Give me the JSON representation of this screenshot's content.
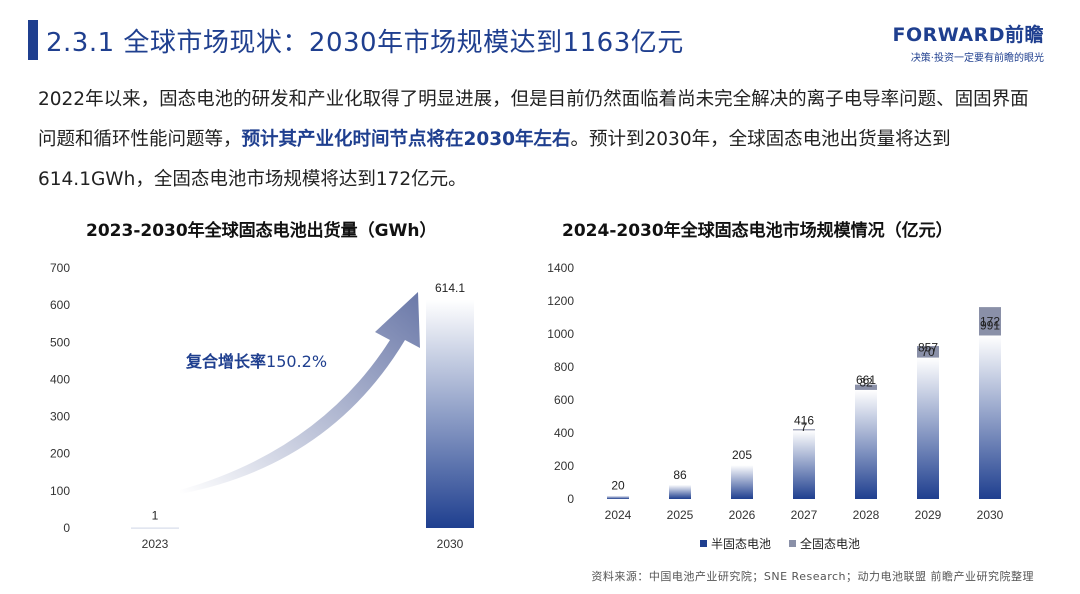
{
  "title": "2.3.1 全球市场现状：2030年市场规模达到1163亿元",
  "logo": {
    "main": "FORWARD前瞻",
    "sub": "决策·投资一定要有前瞻的眼光"
  },
  "paragraph": {
    "part1": "2022年以来，固态电池的研发和产业化取得了明显进展，但是目前仍然面临着尚未完全解决的离子电导率问题、固固界面问题和循环性能问题等，",
    "highlight": "预计其产业化时间节点将在2030年左右",
    "part2": "。预计到2030年，全球固态电池出货量将达到614.1GWh，全固态电池市场规模将达到172亿元。"
  },
  "cagr": {
    "label": "复合增长率",
    "value": "150.2%"
  },
  "chart_data": [
    {
      "type": "bar",
      "title": "2023-2030年全球固态电池出货量（GWh）",
      "categories": [
        "2023",
        "2030"
      ],
      "values": [
        1,
        614.1
      ],
      "value_labels": [
        "1",
        "614.1"
      ],
      "ylim": [
        0,
        700
      ],
      "yticks": [
        "0",
        "100",
        "200",
        "300",
        "400",
        "500",
        "600",
        "700"
      ],
      "grid": false,
      "color": "#1f3f8f"
    },
    {
      "type": "bar",
      "stacked": true,
      "title": "2024-2030年全球固态电池市场规模情况（亿元）",
      "categories": [
        "2024",
        "2025",
        "2026",
        "2027",
        "2028",
        "2029",
        "2030"
      ],
      "series": [
        {
          "name": "半固态电池",
          "values": [
            20,
            86,
            205,
            416,
            661,
            857,
            991
          ],
          "color": "#1f3f8f"
        },
        {
          "name": "全固态电池",
          "values": [
            0,
            0,
            0,
            7,
            32,
            70,
            172
          ],
          "color": "#8a90a8"
        }
      ],
      "labels_semi": [
        "20",
        "86",
        "205",
        "416",
        "661",
        "857",
        "991"
      ],
      "labels_full": [
        "",
        "",
        "",
        "7",
        "32",
        "70",
        "172"
      ],
      "ylim": [
        0,
        1400
      ],
      "yticks": [
        "0",
        "200",
        "400",
        "600",
        "800",
        "1000",
        "1200",
        "1400"
      ],
      "legend_position": "bottom",
      "grid": false
    }
  ],
  "source": "资料来源：中国电池产业研究院；SNE Research；动力电池联盟 前瞻产业研究院整理"
}
